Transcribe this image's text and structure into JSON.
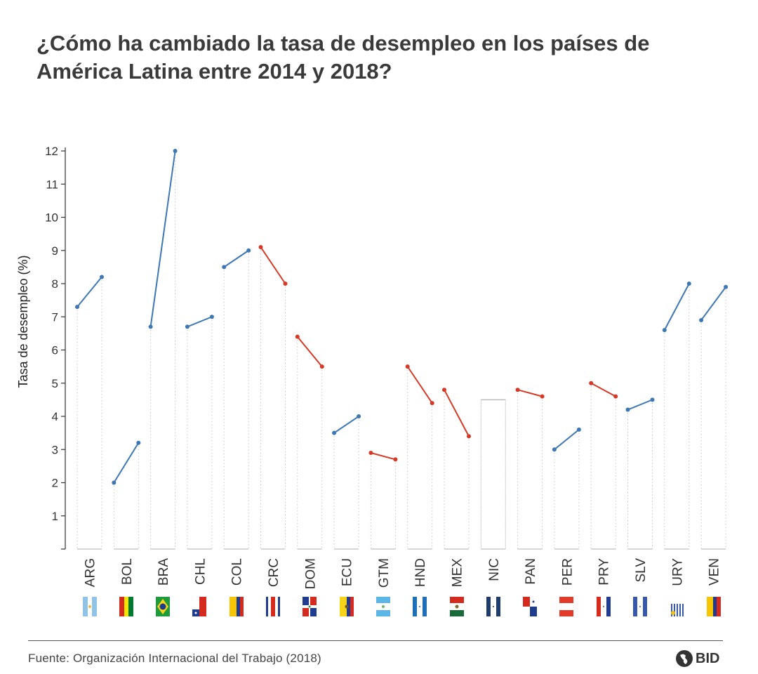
{
  "title": "¿Cómo ha cambiado la tasa de desempleo en los países de América Latina entre 2014 y 2018?",
  "source": "Fuente: Organización Internacional del Trabajo (2018)",
  "logo_text": "BID",
  "colors": {
    "increase": "#3d78b4",
    "decrease": "#d63a26",
    "axis": "#333333",
    "bar": "#cccccc"
  },
  "chart_data": {
    "type": "line",
    "title": "¿Cómo ha cambiado la tasa de desempleo en los países de América Latina entre 2014 y 2018?",
    "xlabel": "",
    "ylabel": "Tasa de desempleo (%)",
    "ylim": [
      0,
      12
    ],
    "yticks": [
      1,
      2,
      3,
      4,
      5,
      6,
      7,
      8,
      9,
      10,
      11,
      12
    ],
    "categories": [
      "ARG",
      "BOL",
      "BRA",
      "CHL",
      "COL",
      "CRC",
      "DOM",
      "ECU",
      "GTM",
      "HND",
      "MEX",
      "NIC",
      "PAN",
      "PER",
      "PRY",
      "SLV",
      "URY",
      "VEN"
    ],
    "series": [
      {
        "values": [
          7.3,
          2.0,
          6.7,
          6.7,
          8.5,
          9.1,
          6.4,
          3.5,
          2.9,
          5.5,
          4.8,
          4.5,
          4.8,
          3.0,
          5.0,
          4.2,
          6.6,
          6.9
        ]
      },
      {
        "values": [
          8.2,
          3.2,
          12.0,
          7.0,
          9.0,
          8.0,
          5.5,
          4.0,
          2.7,
          4.4,
          3.4,
          4.5,
          4.6,
          3.6,
          4.6,
          4.5,
          8.0,
          7.9
        ]
      }
    ],
    "flags": [
      "argentina-flag",
      "bolivia-flag",
      "brazil-flag",
      "chile-flag",
      "colombia-flag",
      "costa-rica-flag",
      "dominican-republic-flag",
      "ecuador-flag",
      "guatemala-flag",
      "honduras-flag",
      "mexico-flag",
      "nicaragua-flag",
      "panama-flag",
      "peru-flag",
      "paraguay-flag",
      "el-salvador-flag",
      "uruguay-flag",
      "venezuela-flag"
    ]
  }
}
